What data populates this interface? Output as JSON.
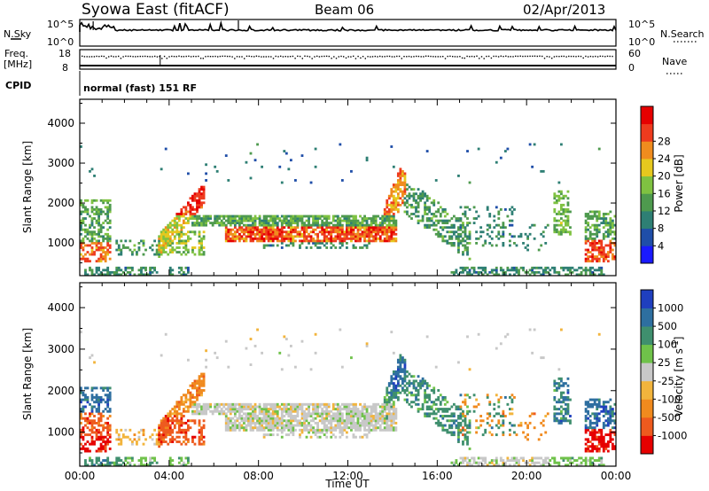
{
  "header": {
    "station": "Syowa East (fitACF)",
    "beam": "Beam 06",
    "date": "02/Apr/2013"
  },
  "top_panel": {
    "nsky_label": "N.Sky",
    "nsky_ticks": [
      "10^5",
      "10^0"
    ],
    "nsearch_label": "N.Search",
    "nsearch_ticks": [
      "10^5",
      "10^0"
    ],
    "freq_label": "Freq.",
    "freq_unit": "[MHz]",
    "freq_ticks": [
      "18",
      "8"
    ],
    "nave_label": "Nave",
    "nave_ticks": [
      "60",
      "0"
    ],
    "cpid_label": "CPID",
    "cpid_text": "normal (fast) 151 RF"
  },
  "chart_data": [
    {
      "type": "heatmap",
      "parameter": "power",
      "ylabel": "Slant Range [km]",
      "ylim": [
        180,
        4600
      ],
      "yticks": [
        1000,
        2000,
        3000,
        4000
      ],
      "xlim": [
        0,
        24
      ],
      "xticks": [
        "00:00",
        "04:00",
        "08:00",
        "12:00",
        "16:00",
        "20:00",
        "00:00"
      ],
      "colorbar": {
        "label": "Power [dB]",
        "ticks": [
          "4",
          "8",
          "12",
          "16",
          "20",
          "24",
          "28"
        ],
        "colors": [
          "#1a1aff",
          "#1f4ea8",
          "#2e7f74",
          "#4e9a4e",
          "#7fc241",
          "#e6c81e",
          "#f08c1e",
          "#ee3b1e",
          "#e60000"
        ]
      }
    },
    {
      "type": "heatmap",
      "parameter": "velocity",
      "ylabel": "Slant Range [km]",
      "ylim": [
        180,
        4600
      ],
      "yticks": [
        1000,
        2000,
        3000,
        4000
      ],
      "xlim": [
        0,
        24
      ],
      "xticks": [
        "00:00",
        "04:00",
        "08:00",
        "12:00",
        "16:00",
        "20:00",
        "00:00"
      ],
      "xlabel": "Time UT",
      "colorbar": {
        "label": "Velocity [m s",
        "label_sup": "-1",
        "ticks": [
          "1000",
          "500",
          "100",
          "25",
          "-25",
          "-100",
          "-500",
          "-1000"
        ],
        "colors": [
          "#1f3fbf",
          "#2e6fa0",
          "#3f8f6e",
          "#6fc24a",
          "#c8c8c8",
          "#f2b43c",
          "#f08a1e",
          "#ee5a1e",
          "#e60000"
        ]
      }
    }
  ]
}
